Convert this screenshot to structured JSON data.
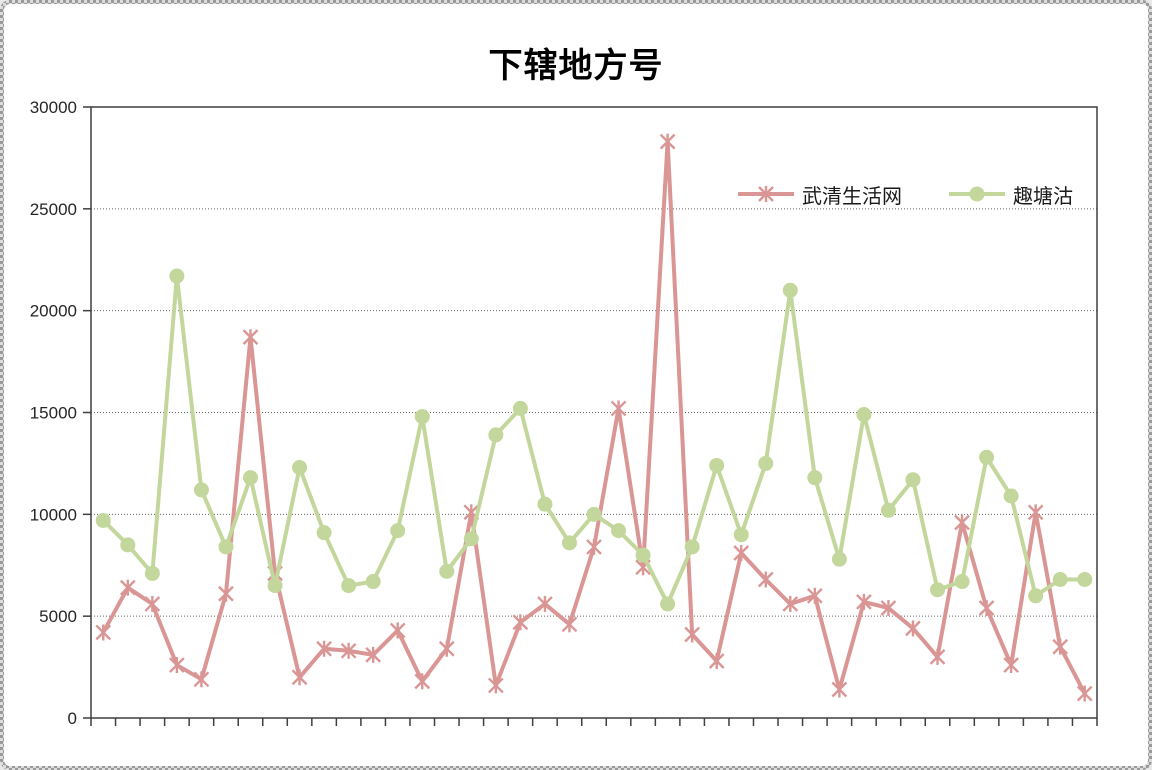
{
  "frame": {
    "border_color": "#9a9a9a",
    "background": "#ffffff"
  },
  "chart_data": {
    "type": "line",
    "title": "下辖地方号",
    "n_points": 41,
    "x_tick_labels_visible": false,
    "series": [
      {
        "name": "武清生活网",
        "color": "#d99694",
        "marker": "star",
        "values": [
          4200,
          6400,
          5600,
          2600,
          1900,
          6100,
          18700,
          7100,
          2000,
          3400,
          3300,
          3100,
          4300,
          1800,
          3400,
          10100,
          1600,
          4700,
          5600,
          4600,
          8400,
          15200,
          7400,
          28300,
          4100,
          2800,
          8100,
          6800,
          5600,
          6000,
          1400,
          5700,
          5400,
          4400,
          3000,
          9600,
          5400,
          2600,
          10100,
          3500,
          1200
        ]
      },
      {
        "name": "趣塘沽",
        "color": "#c3d69b",
        "marker": "circle",
        "values": [
          9700,
          8500,
          7100,
          21700,
          11200,
          8400,
          11800,
          6500,
          12300,
          9100,
          6500,
          6700,
          9200,
          14800,
          7200,
          8800,
          13900,
          15200,
          10500,
          8600,
          10000,
          9200,
          8000,
          5600,
          8400,
          12400,
          9000,
          12500,
          21000,
          11800,
          7800,
          14900,
          10200,
          11700,
          6300,
          6700,
          12800,
          10900,
          6000,
          6800,
          6800
        ]
      }
    ],
    "ylim": [
      0,
      30000
    ],
    "ytick_interval": 5000,
    "ytick_labels": [
      "0",
      "5000",
      "10000",
      "15000",
      "20000",
      "25000",
      "30000"
    ],
    "grid": {
      "horizontal": true,
      "style": "dotted",
      "color": "#666666"
    },
    "axis_color": "#3f3f3f",
    "label_color": "#262626",
    "plot_border": true,
    "legend": {
      "position": "inside-top-right",
      "entries": [
        "武清生活网",
        "趣塘沽"
      ]
    }
  }
}
